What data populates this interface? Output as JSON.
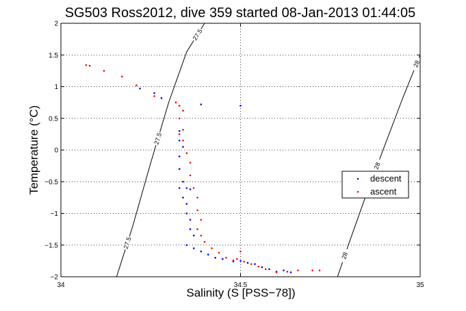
{
  "chart_data": {
    "type": "scatter",
    "title": "SG503 Ross2012, dive 359 started 08-Jan-2013 01:44:05",
    "xlabel": "Salinity (S [PSS−78])",
    "ylabel": "Temperature (°C)",
    "xlim": [
      34,
      35
    ],
    "ylim": [
      -2,
      2
    ],
    "x_ticks": [
      34,
      34.5,
      35
    ],
    "y_ticks": [
      -2,
      -1.5,
      -1,
      -0.5,
      0,
      0.5,
      1,
      1.5,
      2
    ],
    "x_tick_labels": [
      "34",
      "34.5",
      "35"
    ],
    "y_tick_labels": [
      "−2",
      "−1.5",
      "−1",
      "−0.5",
      "0",
      "0.5",
      "1",
      "1.5",
      "2"
    ],
    "grid": true,
    "legend_position": "right",
    "series": [
      {
        "name": "descent",
        "color": "#0000ff",
        "marker": "dot",
        "points": [
          [
            34.22,
            0.97
          ],
          [
            34.26,
            0.9
          ],
          [
            34.28,
            0.82
          ],
          [
            34.39,
            0.72
          ],
          [
            34.5,
            0.7
          ],
          [
            34.33,
            0.3
          ],
          [
            34.33,
            0.15
          ],
          [
            34.34,
            0.05
          ],
          [
            34.33,
            -0.1
          ],
          [
            34.33,
            -0.3
          ],
          [
            34.34,
            -0.5
          ],
          [
            34.33,
            -0.6
          ],
          [
            34.35,
            -0.6
          ],
          [
            34.36,
            -0.62
          ],
          [
            34.34,
            -0.75
          ],
          [
            34.35,
            -0.85
          ],
          [
            34.35,
            -1.0
          ],
          [
            34.36,
            -1.1
          ],
          [
            34.36,
            -1.25
          ],
          [
            34.37,
            -1.35
          ],
          [
            34.35,
            -1.5
          ],
          [
            34.37,
            -1.55
          ],
          [
            34.39,
            -1.6
          ],
          [
            34.41,
            -1.65
          ],
          [
            34.43,
            -1.7
          ],
          [
            34.45,
            -1.72
          ],
          [
            34.48,
            -1.76
          ],
          [
            34.5,
            -1.75
          ],
          [
            34.52,
            -1.78
          ],
          [
            34.54,
            -1.8
          ],
          [
            34.56,
            -1.85
          ],
          [
            34.58,
            -1.88
          ],
          [
            34.6,
            -1.92
          ],
          [
            34.62,
            -1.9
          ],
          [
            34.64,
            -1.93
          ]
        ]
      },
      {
        "name": "ascent",
        "color": "#ff0000",
        "marker": "dot",
        "points": [
          [
            34.07,
            1.34
          ],
          [
            34.08,
            1.33
          ],
          [
            34.12,
            1.25
          ],
          [
            34.17,
            1.16
          ],
          [
            34.21,
            1.02
          ],
          [
            34.26,
            0.85
          ],
          [
            34.32,
            0.75
          ],
          [
            34.33,
            0.7
          ],
          [
            34.34,
            0.62
          ],
          [
            34.33,
            0.5
          ],
          [
            34.34,
            0.32
          ],
          [
            34.33,
            0.25
          ],
          [
            34.34,
            0.15
          ],
          [
            34.35,
            -0.05
          ],
          [
            34.36,
            -0.2
          ],
          [
            34.36,
            -0.4
          ],
          [
            34.37,
            -0.6
          ],
          [
            34.38,
            -0.75
          ],
          [
            34.38,
            -0.95
          ],
          [
            34.39,
            -1.1
          ],
          [
            34.38,
            -1.25
          ],
          [
            34.39,
            -1.35
          ],
          [
            34.4,
            -1.45
          ],
          [
            34.42,
            -1.55
          ],
          [
            34.44,
            -1.62
          ],
          [
            34.46,
            -1.7
          ],
          [
            34.48,
            -1.74
          ],
          [
            34.5,
            -1.6
          ],
          [
            34.49,
            -1.72
          ],
          [
            34.51,
            -1.76
          ],
          [
            34.53,
            -1.8
          ],
          [
            34.55,
            -1.84
          ],
          [
            34.57,
            -1.88
          ],
          [
            34.6,
            -1.93
          ],
          [
            34.63,
            -1.92
          ],
          [
            34.66,
            -1.9
          ],
          [
            34.7,
            -1.9
          ],
          [
            34.72,
            -1.9
          ]
        ]
      }
    ],
    "density_contours": [
      {
        "label": "27.5",
        "points": [
          [
            34.155,
            -2
          ],
          [
            34.2,
            -1.2
          ],
          [
            34.25,
            -0.2
          ],
          [
            34.3,
            0.75
          ],
          [
            34.35,
            1.55
          ],
          [
            34.4,
            2
          ]
        ],
        "labels_at": [
          [
            34.185,
            -1.35
          ],
          [
            34.27,
            0.33
          ],
          [
            34.38,
            1.85
          ]
        ]
      },
      {
        "label": "28",
        "points": [
          [
            34.77,
            -2
          ],
          [
            34.8,
            -1.5
          ],
          [
            34.85,
            -0.7
          ],
          [
            34.9,
            0.05
          ],
          [
            34.95,
            0.8
          ],
          [
            35,
            1.5
          ]
        ],
        "labels_at": [
          [
            34.79,
            -1.6
          ],
          [
            34.88,
            0.0
          ],
          [
            34.99,
            1.45
          ]
        ]
      }
    ]
  }
}
